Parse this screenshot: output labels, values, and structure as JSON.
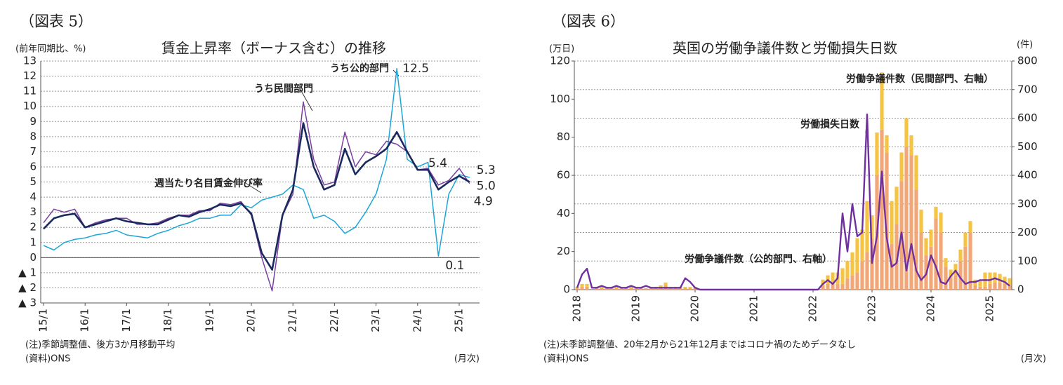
{
  "chart_data": [
    {
      "type": "line",
      "figure_label": "（図表 5）",
      "title": "賃金上昇率（ボーナス含む）の推移",
      "y_label": "(前年同期比、%)",
      "x_label": "(月次)",
      "notes": [
        "(注)季節調整値、後方3か月移動平均",
        "(資料)ONS"
      ],
      "categories": [
        "15/1",
        null,
        null,
        null,
        "16/1",
        null,
        null,
        null,
        "17/1",
        null,
        null,
        null,
        "18/1",
        null,
        null,
        null,
        "19/1",
        null,
        null,
        null,
        "20/1",
        null,
        null,
        null,
        "21/1",
        null,
        null,
        null,
        "22/1",
        null,
        null,
        null,
        "23/1",
        null,
        null,
        null,
        "24/1",
        null,
        null,
        null,
        "25/1",
        null
      ],
      "ylim": [
        -3,
        13
      ],
      "yticks": [
        {
          "value": -3,
          "label": "▲ 3"
        },
        {
          "value": -2,
          "label": "▲ 2"
        },
        {
          "value": -1,
          "label": "▲ 1"
        },
        0,
        1,
        2,
        3,
        4,
        5,
        6,
        7,
        8,
        9,
        10,
        11,
        12,
        13
      ],
      "grid": true,
      "series": [
        {
          "name": "週当たり名目賃金伸び率",
          "color": "#1b2a5e",
          "values": [
            1.9,
            2.6,
            2.8,
            2.9,
            2.0,
            2.2,
            2.4,
            2.6,
            2.4,
            2.3,
            2.2,
            2.2,
            2.5,
            2.8,
            2.7,
            3.0,
            3.2,
            3.5,
            3.4,
            3.6,
            2.9,
            0.3,
            -0.8,
            2.8,
            4.5,
            8.9,
            6.0,
            4.5,
            4.8,
            7.2,
            5.5,
            6.3,
            6.7,
            7.2,
            8.3,
            7.0,
            5.8,
            5.8,
            4.5,
            5.0,
            5.4,
            5.0
          ],
          "value_labels": [
            null,
            null,
            null,
            null,
            null,
            null,
            null,
            null,
            null,
            null,
            null,
            null,
            null,
            null,
            null,
            null,
            null,
            null,
            null,
            null,
            null,
            null,
            null,
            null,
            null,
            null,
            null,
            null,
            null,
            null,
            null,
            null,
            null,
            null,
            null,
            null,
            null,
            null,
            null,
            null,
            "5.4",
            "5.0"
          ]
        },
        {
          "name": "うち民間部門",
          "color": "#7b3fa0",
          "values": [
            2.3,
            3.2,
            3.0,
            3.2,
            2.0,
            2.3,
            2.5,
            2.6,
            2.6,
            2.2,
            2.2,
            2.3,
            2.6,
            2.8,
            2.8,
            3.1,
            3.1,
            3.6,
            3.5,
            3.7,
            2.8,
            0.0,
            -2.2,
            2.8,
            4.2,
            10.3,
            6.5,
            4.8,
            5.0,
            8.3,
            6.0,
            7.0,
            6.8,
            7.7,
            7.5,
            7.0,
            5.8,
            5.9,
            4.8,
            5.1,
            5.9,
            4.9
          ],
          "value_labels": [
            null,
            null,
            null,
            null,
            null,
            null,
            null,
            null,
            null,
            null,
            null,
            null,
            null,
            null,
            null,
            null,
            null,
            null,
            null,
            null,
            null,
            null,
            null,
            null,
            null,
            null,
            null,
            null,
            null,
            null,
            null,
            null,
            null,
            null,
            null,
            null,
            null,
            null,
            null,
            null,
            null,
            "4.9"
          ]
        },
        {
          "name": "うち公的部門",
          "color": "#1ca6d8",
          "values": [
            0.8,
            0.5,
            1.0,
            1.2,
            1.3,
            1.5,
            1.6,
            1.8,
            1.5,
            1.4,
            1.3,
            1.6,
            1.8,
            2.1,
            2.3,
            2.6,
            2.6,
            2.8,
            2.8,
            3.5,
            3.3,
            3.8,
            4.0,
            4.2,
            4.8,
            4.5,
            2.6,
            2.8,
            2.4,
            1.6,
            2.0,
            3.0,
            4.2,
            6.5,
            12.5,
            6.5,
            6.0,
            6.3,
            0.1,
            4.2,
            5.5,
            5.3
          ],
          "value_labels": [
            null,
            null,
            null,
            null,
            null,
            null,
            null,
            null,
            null,
            null,
            null,
            null,
            null,
            null,
            null,
            null,
            null,
            null,
            null,
            null,
            null,
            null,
            null,
            null,
            null,
            null,
            null,
            null,
            null,
            null,
            null,
            null,
            null,
            null,
            "12.5",
            null,
            null,
            null,
            "0.1",
            null,
            null,
            "5.3"
          ]
        }
      ]
    },
    {
      "type": "combo",
      "figure_label": "（図表 6）",
      "title": "英国の労働争議件数と労働損失日数",
      "y_label": "(万日)",
      "y2_label": "(件)",
      "x_label": "(月次)",
      "notes": [
        "(注)未季節調整値、20年2月から21年12月まではコロナ禍のためデータなし",
        "(資料)ONS"
      ],
      "categories": [
        "2018",
        null,
        null,
        null,
        null,
        null,
        null,
        null,
        null,
        null,
        null,
        null,
        "2019",
        null,
        null,
        null,
        null,
        null,
        null,
        null,
        null,
        null,
        null,
        null,
        "2020",
        null,
        null,
        null,
        null,
        null,
        null,
        null,
        null,
        null,
        null,
        null,
        "2021",
        null,
        null,
        null,
        null,
        null,
        null,
        null,
        null,
        null,
        null,
        null,
        "2022",
        null,
        null,
        null,
        null,
        null,
        null,
        null,
        null,
        null,
        null,
        null,
        "2023",
        null,
        null,
        null,
        null,
        null,
        null,
        null,
        null,
        null,
        null,
        null,
        "2024",
        null,
        null,
        null,
        null,
        null,
        null,
        null,
        null,
        null,
        null,
        null,
        "2025",
        null,
        null,
        null,
        null
      ],
      "ylim": [
        0,
        120
      ],
      "yticks": [
        0,
        20,
        40,
        60,
        80,
        100,
        120
      ],
      "y2lim": [
        0,
        800
      ],
      "y2ticks": [
        0,
        100,
        200,
        300,
        400,
        500,
        600,
        700,
        800
      ],
      "grid": true,
      "series": [
        {
          "name": "労働争議件数（公的部門、右軸）",
          "type": "bar",
          "axis": "y2",
          "color": "#f2a779",
          "values": [
            5,
            10,
            10,
            0,
            5,
            5,
            5,
            5,
            5,
            5,
            5,
            5,
            5,
            5,
            5,
            5,
            5,
            10,
            15,
            5,
            5,
            5,
            5,
            5,
            5,
            null,
            null,
            null,
            null,
            null,
            null,
            null,
            null,
            null,
            null,
            null,
            null,
            null,
            null,
            null,
            null,
            null,
            null,
            null,
            null,
            null,
            null,
            null,
            0,
            0,
            15,
            20,
            25,
            20,
            20,
            40,
            50,
            60,
            100,
            130,
            180,
            400,
            560,
            480,
            160,
            230,
            380,
            500,
            470,
            350,
            200,
            120,
            150,
            250,
            200,
            80,
            40,
            50,
            100,
            150,
            200,
            15,
            10,
            10,
            20,
            25,
            25,
            20,
            15
          ]
        },
        {
          "name": "労働争議件数（民間部門、右軸）",
          "type": "bar",
          "axis": "y2",
          "color": "#f5c445",
          "values": [
            5,
            10,
            10,
            0,
            5,
            5,
            5,
            5,
            5,
            0,
            0,
            5,
            5,
            5,
            0,
            5,
            5,
            5,
            10,
            5,
            5,
            5,
            5,
            5,
            5,
            null,
            null,
            null,
            null,
            null,
            null,
            null,
            null,
            null,
            null,
            null,
            null,
            null,
            null,
            null,
            null,
            null,
            null,
            null,
            null,
            null,
            null,
            null,
            0,
            0,
            20,
            30,
            35,
            40,
            55,
            60,
            80,
            120,
            110,
            180,
            80,
            150,
            200,
            60,
            150,
            130,
            100,
            100,
            70,
            120,
            80,
            60,
            60,
            40,
            70,
            30,
            30,
            40,
            40,
            50,
            40,
            20,
            20,
            50,
            40,
            35,
            30,
            25,
            25
          ]
        },
        {
          "name": "労働損失日数",
          "type": "line",
          "color": "#7030a0",
          "values": [
            1,
            8,
            11,
            1,
            1,
            2,
            1,
            1,
            2,
            1,
            1,
            2,
            1,
            1,
            2,
            1,
            1,
            1,
            1,
            1,
            1,
            1,
            6,
            4,
            1,
            0,
            0,
            0,
            0,
            0,
            0,
            0,
            0,
            0,
            0,
            0,
            0,
            0,
            0,
            0,
            0,
            0,
            0,
            0,
            0,
            0,
            0,
            0,
            0,
            0,
            3,
            5,
            3,
            6,
            40,
            20,
            45,
            28,
            30,
            92,
            14,
            28,
            62,
            27,
            12,
            14,
            30,
            10,
            24,
            10,
            5,
            8,
            18,
            12,
            4,
            3,
            7,
            10,
            6,
            3,
            4,
            4,
            5,
            5,
            5,
            6,
            5,
            4,
            2
          ]
        }
      ]
    }
  ]
}
